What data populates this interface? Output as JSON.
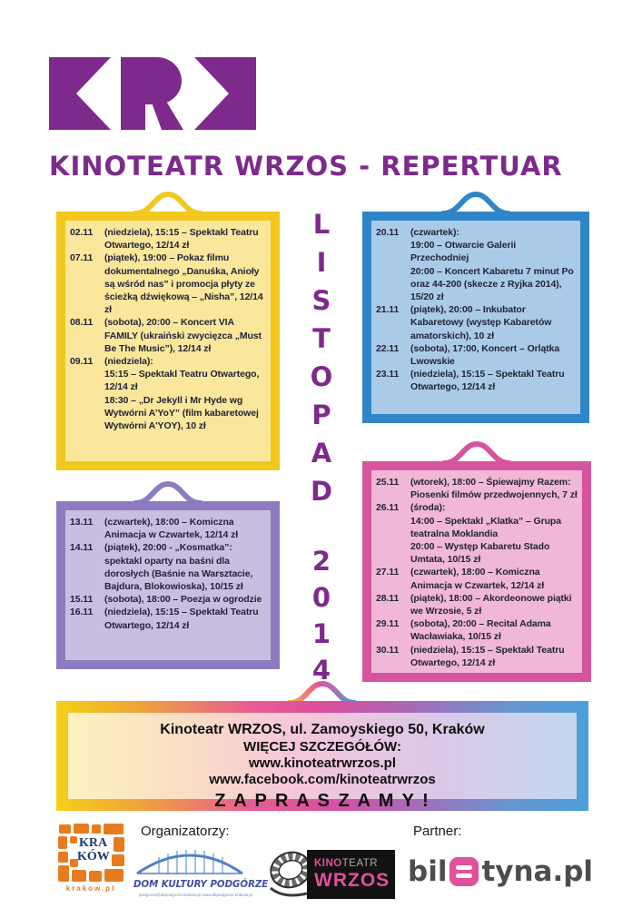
{
  "colors": {
    "brand_purple": "#7d2a8c",
    "text_dark": "#232338",
    "krakow_orange": "#e87b1e",
    "dkp_blue": "#3d4fa5",
    "dkp_bridge_blue": "#4d82c4",
    "wrzos_pink": "#e0509c",
    "biletyna_gray": "#4d4d4d",
    "banner_text": "#101010"
  },
  "logo": {
    "name": "KRK",
    "letters": [
      "K",
      "R",
      "K"
    ]
  },
  "title": "KINOTEATR WRZOS - REPERTUAR",
  "month_vertical": {
    "word": [
      "L",
      "I",
      "S",
      "T",
      "O",
      "P",
      "A",
      "D"
    ],
    "year": [
      "2",
      "0",
      "1",
      "4"
    ]
  },
  "boxes": [
    {
      "name": "week-1",
      "border": "#f2c71e",
      "fill": "#fae79b",
      "entries": [
        {
          "date": "02.11",
          "lines": [
            "(niedziela), 15:15 – Spektakl Teatru Otwartego, 12/14 zł"
          ]
        },
        {
          "date": "07.11",
          "lines": [
            "(piątek), 19:00 – Pokaz filmu dokumentalnego „Danuśka, Anioły są wśród nas” i promocja płyty ze ścieżką dźwiękową – „Nisha”, 12/14 zł"
          ]
        },
        {
          "date": "08.11",
          "lines": [
            "(sobota), 20:00 – Koncert VIA FAMILY (ukraiński zwycięzca „Must Be The Music”), 12/14 zł"
          ]
        },
        {
          "date": "09.11",
          "lines": [
            "(niedziela):",
            "15:15 – Spektakl Teatru Otwartego, 12/14 zł",
            "18:30 – „Dr Jekyll i Mr Hyde wg Wytwórni A’YoY” (film kabaretowej Wytwórni A'YOY), 10 zł"
          ]
        }
      ]
    },
    {
      "name": "week-3-blue",
      "border": "#2e86c8",
      "fill": "#a9cbe8",
      "entries": [
        {
          "date": "20.11",
          "lines": [
            "(czwartek):",
            "19:00 – Otwarcie Galerii Przechodniej",
            "20:00 – Koncert Kabaretu 7 minut Po oraz 44-200 (skecze z Ryjka 2014), 15/20 zł"
          ]
        },
        {
          "date": "21.11",
          "lines": [
            "(piątek), 20:00 – Inkubator Kabaretowy (występ Kabaretów amatorskich), 10 zł"
          ]
        },
        {
          "date": "22.11",
          "lines": [
            "(sobota), 17:00, Koncert – Orlątka Lwowskie"
          ]
        },
        {
          "date": "23.11",
          "lines": [
            "(niedziela), 15:15 – Spektakl Teatru Otwartego, 12/14 zł"
          ]
        }
      ]
    },
    {
      "name": "week-2-purple",
      "border": "#8d7ac0",
      "fill": "#c9bee2",
      "entries": [
        {
          "date": "13.11",
          "lines": [
            "(czwartek), 18:00 – Komiczna Animacja w Czwartek, 12/14 zł"
          ]
        },
        {
          "date": "14.11",
          "lines": [
            "(piątek), 20:00 - „Kosmatka”: spektakl oparty na baśni dla dorosłych (Baśnie na Warsztacie, Bajdura, Blokowioska), 10/15 zł"
          ]
        },
        {
          "date": "15.11",
          "lines": [
            "(sobota), 18:00 – Poezja w ogrodzie"
          ]
        },
        {
          "date": "16.11",
          "lines": [
            "(niedziela), 15:15 – Spektakl Teatru Otwartego, 12/14 zł"
          ]
        }
      ]
    },
    {
      "name": "week-4-pink",
      "border": "#d6549e",
      "fill": "#f0b8d6",
      "entries": [
        {
          "date": "25.11",
          "lines": [
            "(wtorek), 18:00 – Śpiewajmy Razem: Piosenki filmów przedwojennych, 7 zł"
          ]
        },
        {
          "date": "26.11",
          "lines": [
            "(środa):",
            "14:00 – Spektakl „Klatka” – Grupa teatralna Moklandia",
            "20:00 – Występ Kabaretu Stado Umtata, 10/15 zł"
          ]
        },
        {
          "date": "27.11",
          "lines": [
            "(czwartek), 18:00 – Komiczna Animacja w Czwartek, 12/14 zł"
          ]
        },
        {
          "date": "28.11",
          "lines": [
            "(piątek), 18:00 – Akordeonowe piątki we Wrzosie, 5 zł"
          ]
        },
        {
          "date": "29.11",
          "lines": [
            "(sobota), 20:00 – Recital Adama Wacławiaka, 10/15 zł"
          ]
        },
        {
          "date": "30.11",
          "lines": [
            "(niedziela), 15:15 – Spektakl Teatru Otwartego, 12/14 zł"
          ]
        }
      ]
    }
  ],
  "banner": {
    "address": "Kinoteatr WRZOS, ul. Zamoyskiego 50, Kraków",
    "details_label": "WIĘCEJ SZCZEGÓŁÓW:",
    "url_site": "www.kinoteatrwrzos.pl",
    "url_facebook": "www.facebook.com/kinoteatrwrzos",
    "invite": "Z A P R A S Z A M Y  !"
  },
  "footer": {
    "organizers_label": "Organizatorzy:",
    "partner_label": "Partner:",
    "krakow_logo": {
      "line1": "KRA",
      "line2": "KÓW",
      "url": "krakow.pl"
    },
    "dkp_logo": {
      "name": "DOM KULTURY PODGÓRZE",
      "contact": "podgorze@dkpodgorze.krakow.pl    www.dkpodgorze.krakow.pl"
    },
    "wrzos_logo": {
      "kino": "KINO",
      "teatr": "TEATR",
      "wrzos": "WRZOS"
    },
    "biletyna_logo": {
      "pre": "bil",
      "post": "tyna.pl"
    }
  }
}
